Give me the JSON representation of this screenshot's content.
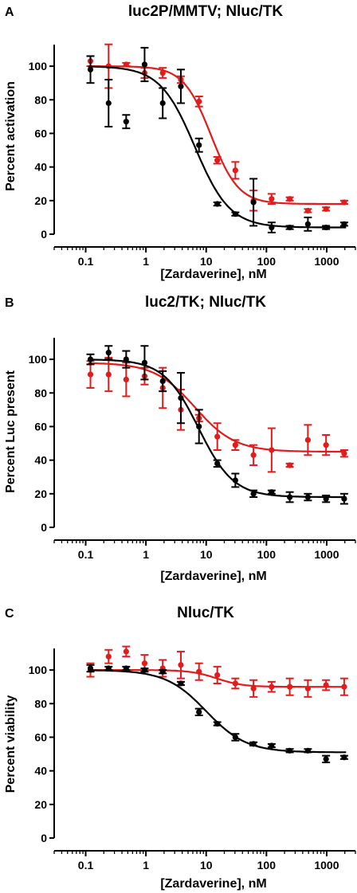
{
  "chart_data": [
    {
      "panel_label": "A",
      "type": "scatter",
      "title": "luc2P/MMTV; Nluc/TK",
      "xlabel": "[Zardaverine], nM",
      "ylabel": "Percent activation",
      "x_scale": "log",
      "xlim": [
        0.03,
        3000
      ],
      "ylim": [
        0,
        110
      ],
      "x_ticks": [
        0.1,
        1,
        10,
        100,
        1000
      ],
      "x_tick_labels": [
        "0.1",
        "1",
        "10",
        "100",
        "1000"
      ],
      "y_ticks": [
        0,
        20,
        40,
        60,
        80,
        100
      ],
      "y_tick_labels": [
        "0",
        "20",
        "40",
        "60",
        "80",
        "100"
      ],
      "grid": false,
      "series": [
        {
          "color": "#e31b1b",
          "x": [
            0.12,
            0.24,
            0.47,
            0.95,
            1.9,
            3.8,
            7.6,
            15.3,
            30.5,
            61,
            122,
            244,
            488,
            977,
            1953
          ],
          "y": [
            103,
            100,
            101,
            96,
            96,
            92,
            79,
            44,
            38,
            20,
            21,
            21,
            14,
            15,
            19
          ],
          "err": [
            3,
            13,
            1,
            3,
            3,
            2,
            3,
            2,
            5,
            6,
            3,
            1,
            1,
            1,
            1
          ],
          "fit": {
            "top": 100,
            "bottom": 18,
            "ec50": 12,
            "hill": 1.9
          }
        },
        {
          "color": "#000000",
          "x": [
            0.12,
            0.24,
            0.47,
            0.95,
            1.9,
            3.8,
            7.6,
            15.3,
            30.5,
            61,
            122,
            244,
            488,
            977,
            1953
          ],
          "y": [
            98,
            78,
            67,
            101,
            78,
            88,
            53,
            18,
            12,
            19,
            4,
            4,
            6,
            4,
            6
          ],
          "err": [
            8,
            14,
            4,
            10,
            9,
            10,
            4,
            1,
            1,
            14,
            3,
            1,
            4,
            1,
            1
          ],
          "fit": {
            "top": 100,
            "bottom": 4,
            "ec50": 6.5,
            "hill": 1.5
          }
        }
      ]
    },
    {
      "panel_label": "B",
      "type": "scatter",
      "title": "luc2/TK; Nluc/TK",
      "xlabel": "[Zardaverine], nM",
      "ylabel": "Percent Luc present",
      "x_scale": "log",
      "xlim": [
        0.03,
        3000
      ],
      "ylim": [
        0,
        110
      ],
      "x_ticks": [
        0.1,
        1,
        10,
        100,
        1000
      ],
      "x_tick_labels": [
        "0.1",
        "1",
        "10",
        "100",
        "1000"
      ],
      "y_ticks": [
        0,
        20,
        40,
        60,
        80,
        100
      ],
      "y_tick_labels": [
        "0",
        "20",
        "40",
        "60",
        "80",
        "100"
      ],
      "grid": false,
      "series": [
        {
          "color": "#e31b1b",
          "x": [
            0.12,
            0.24,
            0.47,
            0.95,
            1.9,
            3.8,
            7.6,
            15.3,
            30.5,
            61,
            122,
            244,
            488,
            977,
            1953
          ],
          "y": [
            91,
            91,
            88,
            90,
            83,
            70,
            65,
            54,
            49,
            43,
            46,
            37,
            52,
            49,
            44
          ],
          "err": [
            8,
            10,
            10,
            5,
            12,
            12,
            2,
            8,
            3,
            6,
            13,
            1,
            9,
            6,
            2
          ],
          "fit": {
            "top": 98,
            "bottom": 45,
            "ec50": 6.5,
            "hill": 1.3
          }
        },
        {
          "color": "#000000",
          "x": [
            0.12,
            0.24,
            0.47,
            0.95,
            1.9,
            3.8,
            7.6,
            15.3,
            30.5,
            61,
            122,
            244,
            488,
            977,
            1953
          ],
          "y": [
            100,
            104,
            100,
            98,
            87,
            77,
            60,
            38,
            28,
            20,
            21,
            18,
            18,
            17,
            17
          ],
          "err": [
            3,
            4,
            5,
            10,
            6,
            15,
            10,
            2,
            4,
            2,
            1,
            3,
            2,
            2,
            3
          ],
          "fit": {
            "top": 100,
            "bottom": 18,
            "ec50": 7.5,
            "hill": 1.5
          }
        }
      ]
    },
    {
      "panel_label": "C",
      "type": "scatter",
      "title": "Nluc/TK",
      "xlabel": "[Zardaverine], nM",
      "ylabel": "Percent viability",
      "x_scale": "log",
      "xlim": [
        0.03,
        3000
      ],
      "ylim": [
        0,
        110
      ],
      "x_ticks": [
        0.1,
        1,
        10,
        100,
        1000
      ],
      "x_tick_labels": [
        "0.1",
        "1",
        "10",
        "100",
        "1000"
      ],
      "y_ticks": [
        0,
        20,
        40,
        60,
        80,
        100
      ],
      "y_tick_labels": [
        "0",
        "20",
        "40",
        "60",
        "80",
        "100"
      ],
      "grid": false,
      "series": [
        {
          "color": "#e31b1b",
          "x": [
            0.12,
            0.24,
            0.47,
            0.95,
            1.9,
            3.8,
            7.6,
            15.3,
            30.5,
            61,
            122,
            244,
            488,
            977,
            1953
          ],
          "y": [
            100,
            108,
            111,
            104,
            101,
            103,
            99,
            97,
            92,
            89,
            90,
            90,
            89,
            91,
            90
          ],
          "err": [
            4,
            4,
            3,
            5,
            5,
            8,
            5,
            5,
            3,
            5,
            3,
            5,
            5,
            3,
            5
          ],
          "fit": {
            "top": 100,
            "bottom": 90,
            "ec50": 15,
            "hill": 2.0
          }
        },
        {
          "color": "#000000",
          "x": [
            0.12,
            0.24,
            0.47,
            0.95,
            1.9,
            3.8,
            7.6,
            15.3,
            30.5,
            61,
            122,
            244,
            488,
            977,
            1953
          ],
          "y": [
            101,
            101,
            101,
            100,
            99,
            92,
            75,
            68,
            60,
            56,
            55,
            52,
            52,
            47,
            48
          ],
          "err": [
            2,
            1,
            1,
            1,
            1,
            1,
            2,
            1,
            2,
            1,
            1,
            1,
            1,
            2,
            1
          ],
          "fit": {
            "top": 100,
            "bottom": 51,
            "ec50": 10,
            "hill": 1.3
          }
        }
      ]
    }
  ]
}
